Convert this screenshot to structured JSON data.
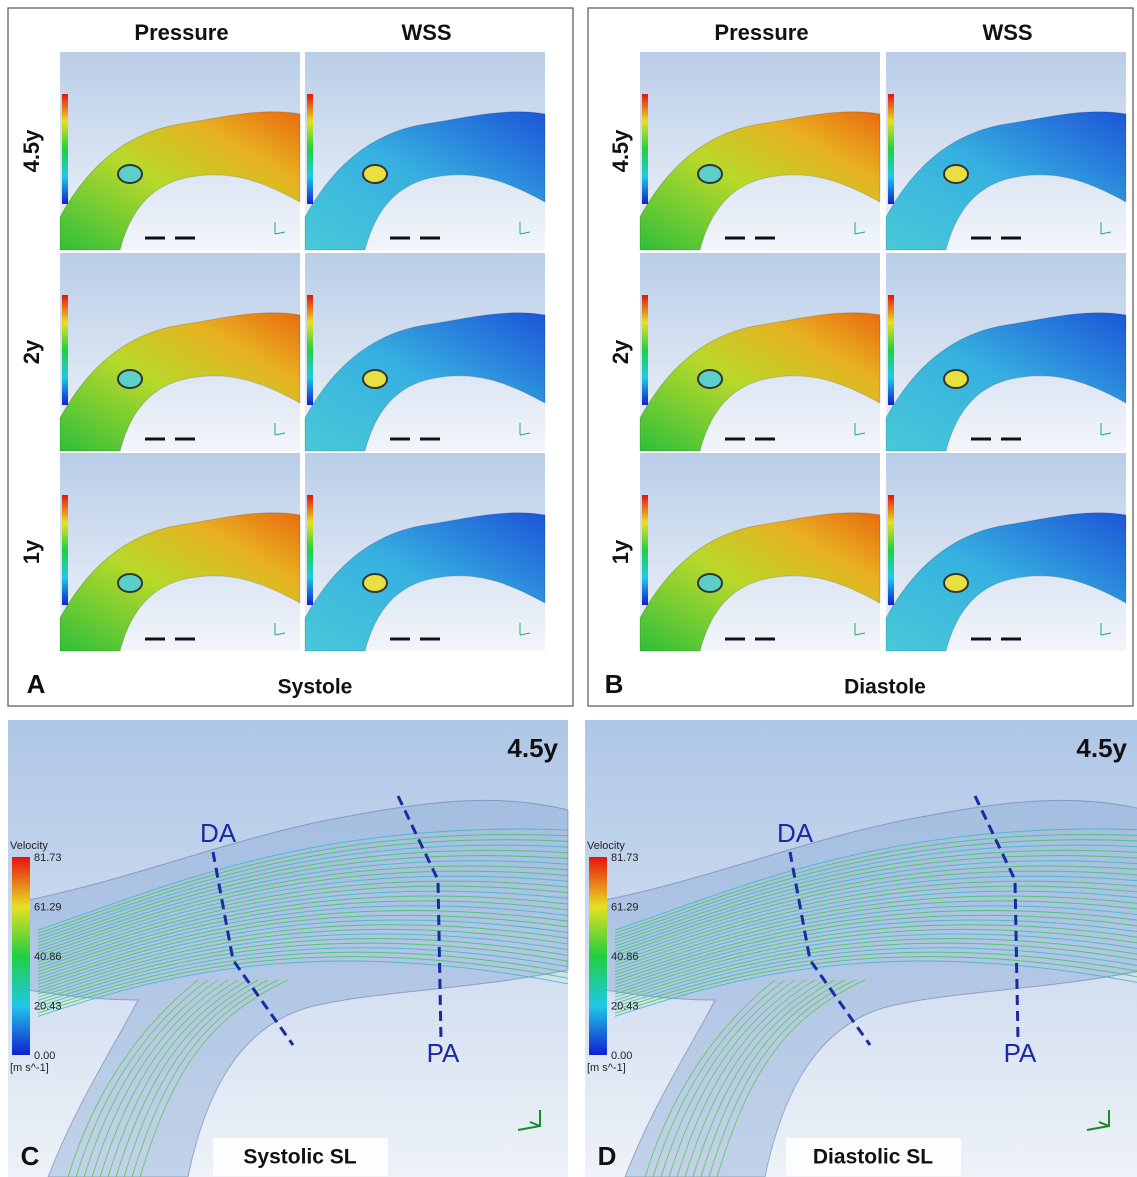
{
  "panels": [
    {
      "letter": "A",
      "caption": "Systole",
      "columns": [
        "Pressure",
        "WSS"
      ],
      "rows": [
        "4.5y",
        "2y",
        "1y"
      ]
    },
    {
      "letter": "B",
      "caption": "Diastole",
      "columns": [
        "Pressure",
        "WSS"
      ],
      "rows": [
        "4.5y",
        "2y",
        "1y"
      ]
    },
    {
      "letter": "C",
      "caption": "Systolic SL",
      "age": "4.5y",
      "labels": [
        "DA",
        "PA"
      ],
      "legend": {
        "title": "Velocity",
        "ticks": [
          "81.73",
          "61.29",
          "40.86",
          "20.43",
          "0.00"
        ],
        "unit": "[m s^-1]"
      }
    },
    {
      "letter": "D",
      "caption": "Diastolic SL",
      "age": "4.5y",
      "labels": [
        "DA",
        "PA"
      ],
      "legend": {
        "title": "Velocity",
        "ticks": [
          "81.73",
          "61.29",
          "40.86",
          "20.43",
          "0.00"
        ],
        "unit": "[m s^-1]"
      }
    }
  ]
}
